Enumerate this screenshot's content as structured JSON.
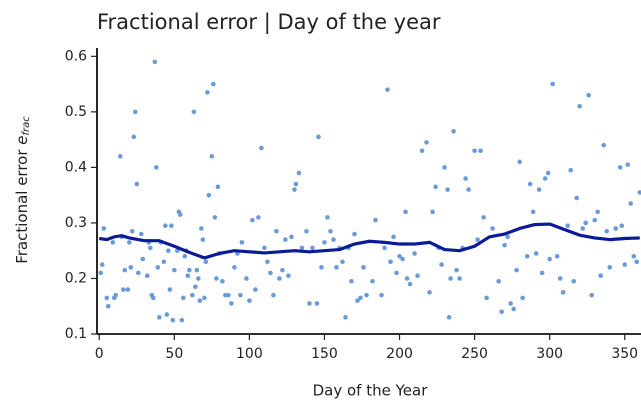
{
  "chart_data": {
    "type": "scatter",
    "title": "Fractional error | Day of the year",
    "xlabel": "Day of the Year",
    "ylabel": "Fractional error",
    "ylabel_symbol": "e",
    "ylabel_subscript": "frac",
    "xlim": [
      -1.5,
      361
    ],
    "ylim": [
      0.1,
      0.615
    ],
    "xticks": [
      0,
      50,
      100,
      150,
      200,
      250,
      300,
      350
    ],
    "yticks": [
      0.1,
      0.2,
      0.3,
      0.4,
      0.5,
      0.6
    ],
    "scatter": {
      "color": "#6a9bd8",
      "x": [
        1,
        2,
        3,
        5,
        6,
        9,
        10,
        11,
        14,
        15,
        16,
        17,
        19,
        20,
        21,
        22,
        23,
        24,
        25,
        26,
        28,
        29,
        32,
        33,
        34,
        35,
        36,
        37,
        38,
        39,
        40,
        41,
        43,
        44,
        45,
        46,
        47,
        48,
        49,
        50,
        52,
        53,
        54,
        55,
        56,
        57,
        58,
        59,
        60,
        62,
        63,
        64,
        65,
        66,
        67,
        68,
        69,
        70,
        71,
        72,
        73,
        75,
        76,
        77,
        78,
        79,
        80,
        82,
        84,
        86,
        88,
        90,
        92,
        94,
        95,
        98,
        100,
        102,
        104,
        106,
        108,
        110,
        112,
        114,
        116,
        118,
        120,
        122,
        124,
        126,
        128,
        130,
        131,
        133,
        135,
        138,
        140,
        142,
        145,
        146,
        148,
        150,
        152,
        154,
        156,
        158,
        160,
        162,
        164,
        166,
        168,
        170,
        172,
        174,
        176,
        178,
        182,
        184,
        188,
        190,
        192,
        194,
        196,
        198,
        200,
        202,
        204,
        205,
        207,
        210,
        212,
        215,
        218,
        220,
        222,
        224,
        226,
        228,
        230,
        232,
        233,
        234,
        236,
        238,
        240,
        242,
        244,
        246,
        250,
        252,
        254,
        256,
        258,
        262,
        266,
        268,
        270,
        272,
        274,
        276,
        278,
        280,
        282,
        285,
        287,
        289,
        291,
        293,
        295,
        297,
        299,
        300,
        302,
        305,
        307,
        309,
        312,
        314,
        316,
        318,
        320,
        322,
        324,
        326,
        328,
        330,
        332,
        334,
        336,
        338,
        340,
        344,
        347,
        348,
        350,
        352,
        354,
        356,
        358,
        360
      ],
      "values": [
        0.21,
        0.225,
        0.29,
        0.165,
        0.15,
        0.265,
        0.165,
        0.17,
        0.42,
        0.275,
        0.18,
        0.215,
        0.18,
        0.265,
        0.22,
        0.285,
        0.455,
        0.5,
        0.37,
        0.21,
        0.28,
        0.235,
        0.205,
        0.265,
        0.255,
        0.17,
        0.165,
        0.59,
        0.4,
        0.22,
        0.13,
        0.265,
        0.23,
        0.295,
        0.135,
        0.25,
        0.18,
        0.295,
        0.125,
        0.215,
        0.25,
        0.32,
        0.315,
        0.125,
        0.165,
        0.24,
        0.25,
        0.205,
        0.215,
        0.17,
        0.5,
        0.185,
        0.215,
        0.2,
        0.16,
        0.29,
        0.27,
        0.165,
        0.23,
        0.535,
        0.35,
        0.42,
        0.55,
        0.31,
        0.2,
        0.365,
        0.245,
        0.195,
        0.17,
        0.17,
        0.155,
        0.22,
        0.245,
        0.17,
        0.265,
        0.2,
        0.16,
        0.305,
        0.18,
        0.31,
        0.435,
        0.255,
        0.23,
        0.21,
        0.17,
        0.285,
        0.2,
        0.215,
        0.27,
        0.205,
        0.275,
        0.36,
        0.37,
        0.39,
        0.255,
        0.285,
        0.155,
        0.255,
        0.155,
        0.455,
        0.22,
        0.265,
        0.31,
        0.285,
        0.27,
        0.22,
        0.255,
        0.23,
        0.13,
        0.255,
        0.195,
        0.28,
        0.16,
        0.165,
        0.22,
        0.17,
        0.195,
        0.305,
        0.17,
        0.255,
        0.54,
        0.23,
        0.275,
        0.21,
        0.24,
        0.235,
        0.32,
        0.2,
        0.19,
        0.245,
        0.205,
        0.43,
        0.445,
        0.175,
        0.32,
        0.365,
        0.255,
        0.225,
        0.4,
        0.36,
        0.13,
        0.2,
        0.465,
        0.215,
        0.2,
        0.255,
        0.38,
        0.36,
        0.43,
        0.27,
        0.43,
        0.31,
        0.165,
        0.29,
        0.195,
        0.14,
        0.26,
        0.275,
        0.155,
        0.145,
        0.215,
        0.41,
        0.165,
        0.24,
        0.37,
        0.32,
        0.245,
        0.36,
        0.21,
        0.38,
        0.39,
        0.235,
        0.55,
        0.24,
        0.2,
        0.175,
        0.295,
        0.395,
        0.195,
        0.345,
        0.51,
        0.29,
        0.3,
        0.53,
        0.17,
        0.305,
        0.32,
        0.205,
        0.44,
        0.285,
        0.22,
        0.29,
        0.4,
        0.295,
        0.225,
        0.405,
        0.335,
        0.24,
        0.23,
        0.355
      ]
    },
    "line": {
      "color": "#0b1a96",
      "x": [
        0,
        5,
        10,
        15,
        20,
        30,
        40,
        50,
        60,
        70,
        80,
        90,
        100,
        110,
        120,
        130,
        140,
        150,
        160,
        170,
        180,
        190,
        200,
        210,
        220,
        230,
        240,
        250,
        260,
        270,
        280,
        290,
        300,
        310,
        320,
        330,
        340,
        350,
        360
      ],
      "values": [
        0.272,
        0.27,
        0.275,
        0.277,
        0.273,
        0.268,
        0.268,
        0.258,
        0.247,
        0.237,
        0.245,
        0.25,
        0.248,
        0.246,
        0.248,
        0.25,
        0.248,
        0.25,
        0.252,
        0.262,
        0.267,
        0.265,
        0.262,
        0.262,
        0.265,
        0.252,
        0.25,
        0.258,
        0.275,
        0.28,
        0.29,
        0.297,
        0.298,
        0.288,
        0.278,
        0.273,
        0.27,
        0.272,
        0.273
      ]
    }
  }
}
